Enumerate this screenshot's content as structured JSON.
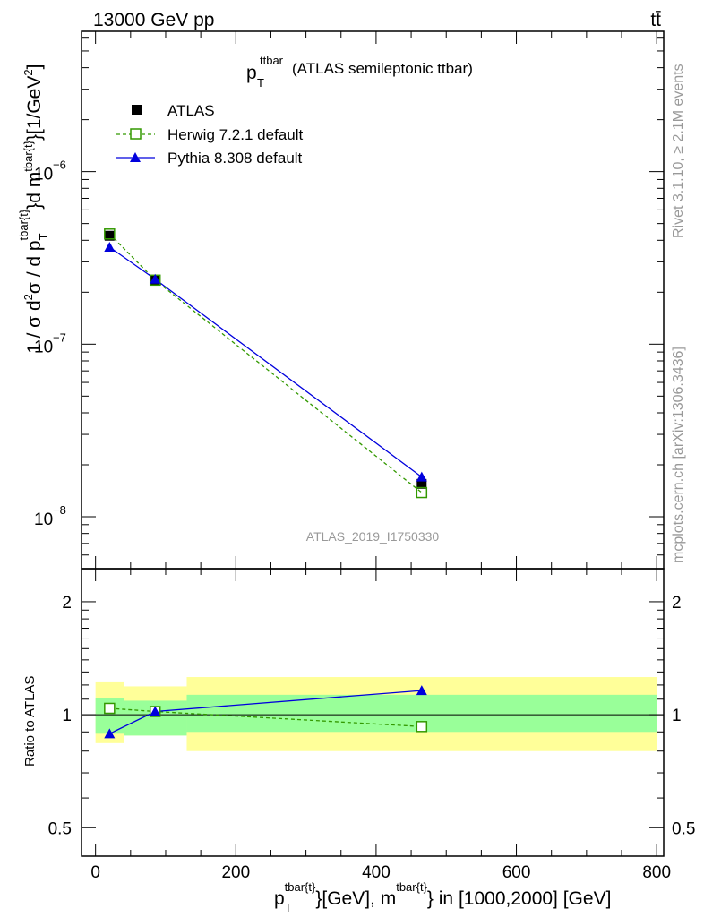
{
  "header": {
    "energy_label": "13000 GeV pp",
    "process_label": "tt̄"
  },
  "title": {
    "main": "p",
    "sub": "T",
    "sup": "ttbar",
    "rest": "(ATLAS semileptonic ttbar)"
  },
  "y_axis_main": {
    "label_text": "1 / σ d²σ / d p_T^{tbar{t}}d m^{tbar{t}}[1/GeV²]",
    "tick_labels": [
      "10",
      "10",
      "10"
    ],
    "tick_exponents": [
      "−8",
      "−7",
      "−6"
    ]
  },
  "y_axis_ratio": {
    "label": "Ratio to ATLAS",
    "tick_labels": [
      "0.5",
      "1",
      "2"
    ]
  },
  "x_axis": {
    "label_text": "p_T^{tbar{t}}[GeV], m^{tbar{t}} in [1000,2000] [GeV]",
    "tick_labels": [
      "0",
      "200",
      "400",
      "600",
      "800"
    ]
  },
  "side_labels": {
    "rivet": "Rivet 3.1.10, ≥ 2.1M events",
    "mcplots": "mcplots.cern.ch [arXiv:1306.3436]"
  },
  "watermark": "ATLAS_2019_I1750330",
  "legend": [
    {
      "label": "ATLAS"
    },
    {
      "label": "Herwig 7.2.1 default"
    },
    {
      "label": "Pythia 8.308 default"
    }
  ],
  "colors": {
    "data": "#000000",
    "herwig": "#339900",
    "pythia": "#0000dd",
    "band_inner": "#99ff99",
    "band_outer": "#ffff99",
    "watermark": "#999999"
  },
  "chart_data": {
    "type": "line",
    "xlim": [
      -20,
      810
    ],
    "main_ylim": [
      5e-09,
      6.5e-06
    ],
    "main_yscale": "log",
    "ratio_ylim": [
      0.42,
      2.45
    ],
    "ratio_yscale": "log",
    "bins": [
      [
        0,
        40
      ],
      [
        40,
        130
      ],
      [
        130,
        800
      ]
    ],
    "x": [
      20,
      85,
      465
    ],
    "series": [
      {
        "name": "ATLAS",
        "style": "square",
        "values": [
          4.25e-07,
          2.35e-07,
          1.55e-08
        ]
      },
      {
        "name": "Herwig 7.2.1 default",
        "style": "open-square-dashed",
        "values": [
          4.35e-07,
          2.35e-07,
          1.38e-08
        ],
        "ratio": [
          1.04,
          1.02,
          0.93
        ]
      },
      {
        "name": "Pythia 8.308 default",
        "style": "triangle-line",
        "values": [
          3.65e-07,
          2.38e-07,
          1.7e-08
        ],
        "ratio": [
          0.89,
          1.02,
          1.16
        ]
      }
    ],
    "uncertainty_bands": {
      "inner": [
        [
          0.89,
          1.11
        ],
        [
          0.88,
          1.09
        ],
        [
          0.9,
          1.13
        ]
      ],
      "outer": [
        [
          0.84,
          1.22
        ],
        [
          0.88,
          1.19
        ],
        [
          0.8,
          1.26
        ]
      ]
    }
  }
}
